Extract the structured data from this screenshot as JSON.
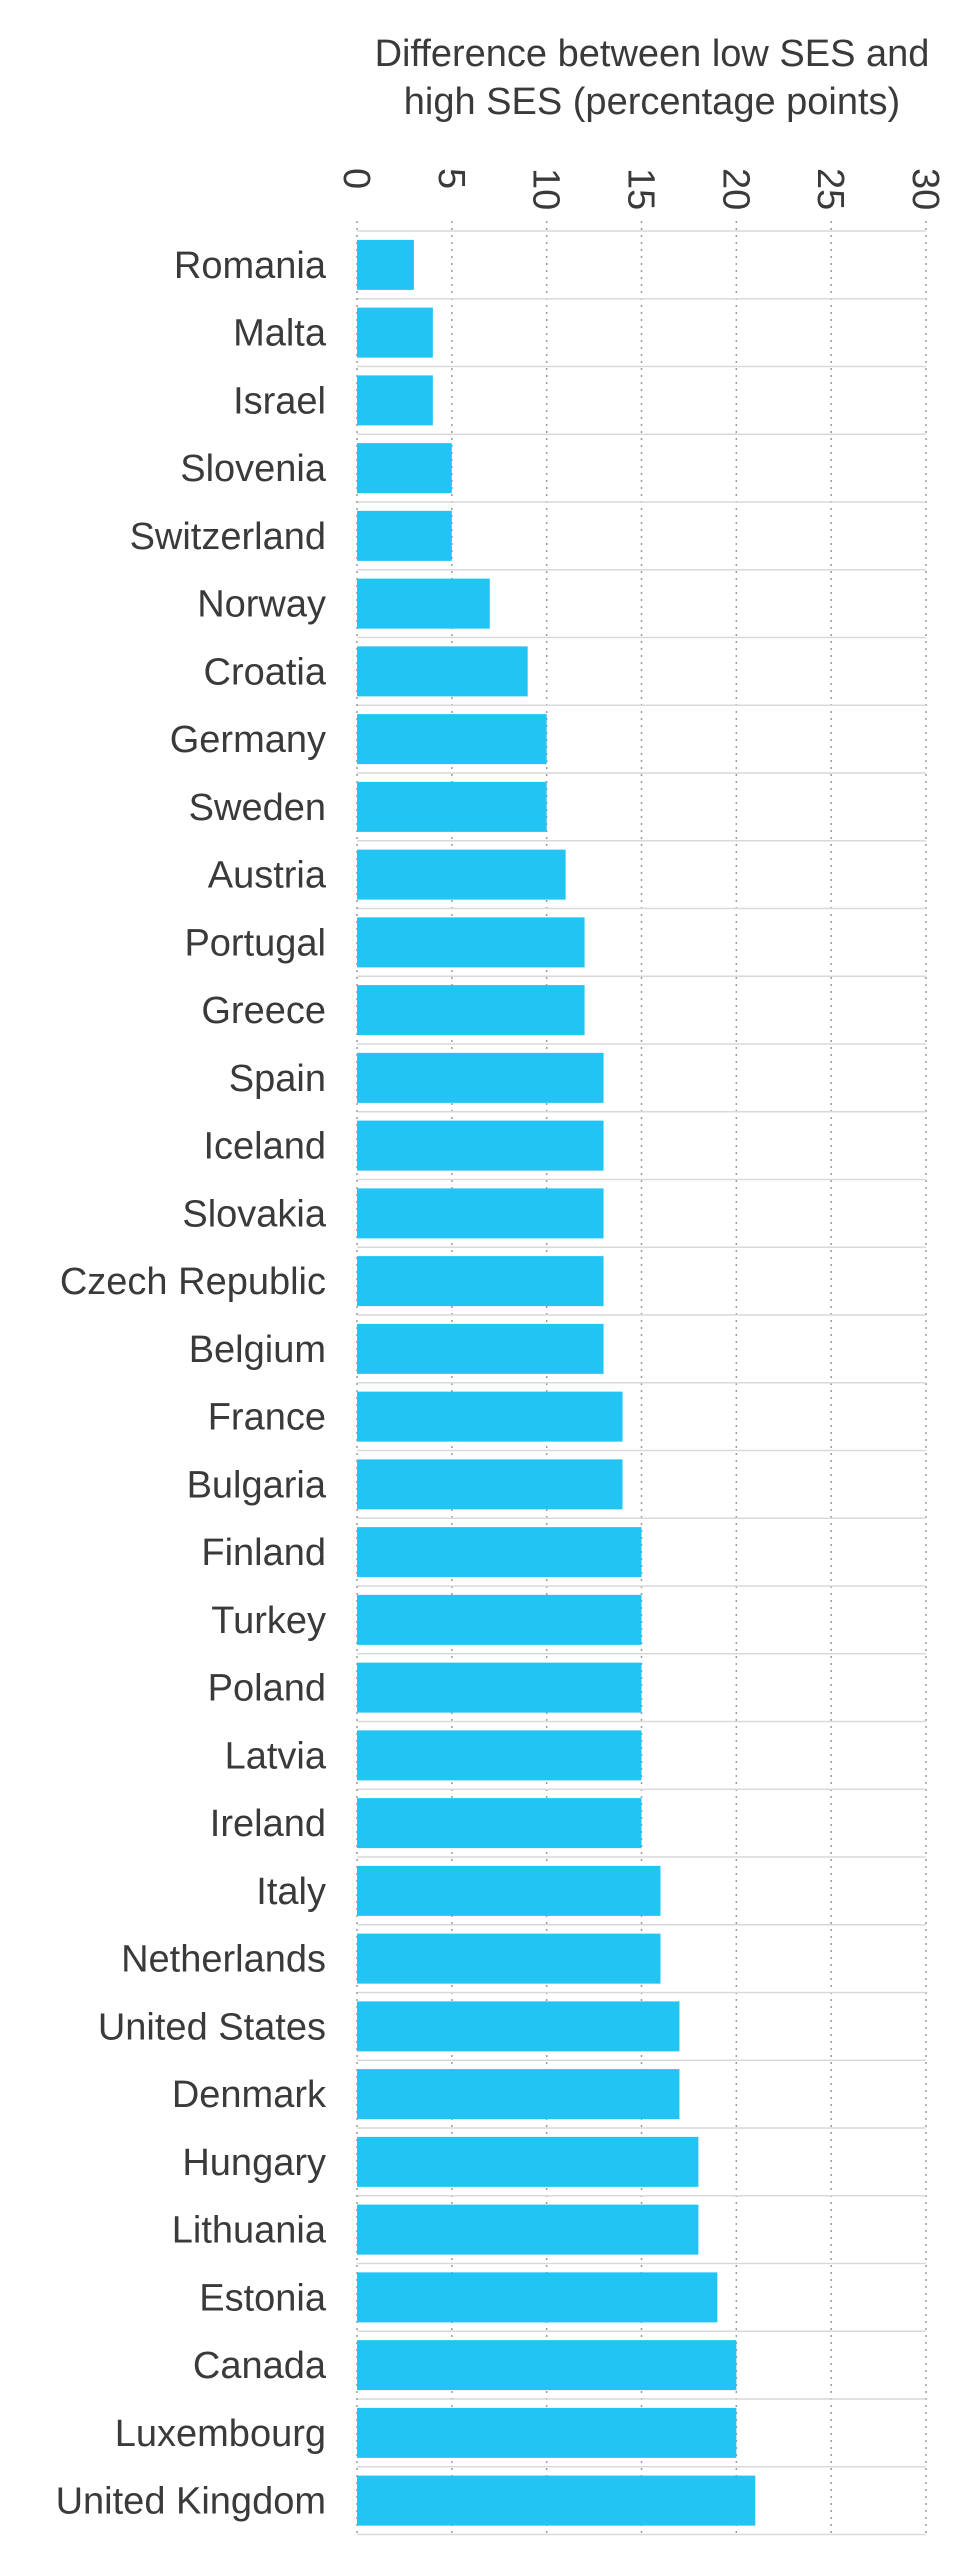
{
  "chart_data": {
    "type": "bar",
    "orientation": "horizontal",
    "title_lines": [
      "Difference between low SES and",
      "high SES (percentage points)"
    ],
    "xlim": [
      0,
      30
    ],
    "xticks": [
      0,
      5,
      10,
      15,
      20,
      25,
      30
    ],
    "grid": true,
    "bar_color": "#21c4f3",
    "categories": [
      "Romania",
      "Malta",
      "Israel",
      "Slovenia",
      "Switzerland",
      "Norway",
      "Croatia",
      "Germany",
      "Sweden",
      "Austria",
      "Portugal",
      "Greece",
      "Spain",
      "Iceland",
      "Slovakia",
      "Czech Republic",
      "Belgium",
      "France",
      "Bulgaria",
      "Finland",
      "Turkey",
      "Poland",
      "Latvia",
      "Ireland",
      "Italy",
      "Netherlands",
      "United States",
      "Denmark",
      "Hungary",
      "Lithuania",
      "Estonia",
      "Canada",
      "Luxembourg",
      "United Kingdom"
    ],
    "values": [
      3,
      4,
      4,
      5,
      5,
      7,
      9,
      10,
      10,
      11,
      12,
      12,
      13,
      13,
      13,
      13,
      13,
      14,
      14,
      15,
      15,
      15,
      15,
      15,
      16,
      16,
      17,
      17,
      18,
      18,
      19,
      20,
      20,
      21
    ]
  }
}
